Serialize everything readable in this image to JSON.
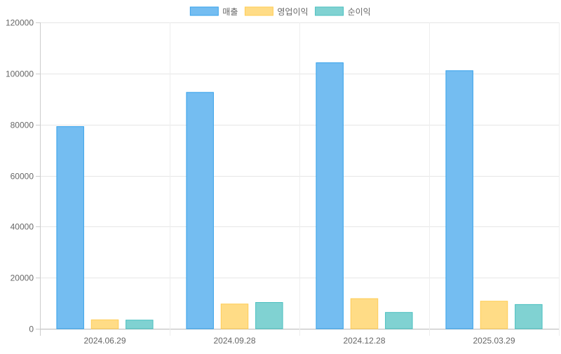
{
  "chart_data": {
    "type": "bar",
    "categories": [
      "2024.06.29",
      "2024.09.28",
      "2024.12.28",
      "2025.03.29"
    ],
    "series": [
      {
        "name": "매출",
        "values": [
          79200,
          92600,
          104200,
          101100
        ],
        "fill": "#74bdf1",
        "stroke": "#36a2eb"
      },
      {
        "name": "영업이익",
        "values": [
          3500,
          9700,
          11800,
          10800
        ],
        "fill": "#ffdc86",
        "stroke": "#ffcd56"
      },
      {
        "name": "순이익",
        "values": [
          3400,
          10300,
          6400,
          9500
        ],
        "fill": "#80d2d2",
        "stroke": "#4bc0c0"
      }
    ],
    "ylim": [
      0,
      120000
    ],
    "yticks": [
      0,
      20000,
      40000,
      60000,
      80000,
      100000,
      120000
    ],
    "title": "",
    "xlabel": "",
    "ylabel": "",
    "grid": true,
    "legend_position": "top"
  }
}
